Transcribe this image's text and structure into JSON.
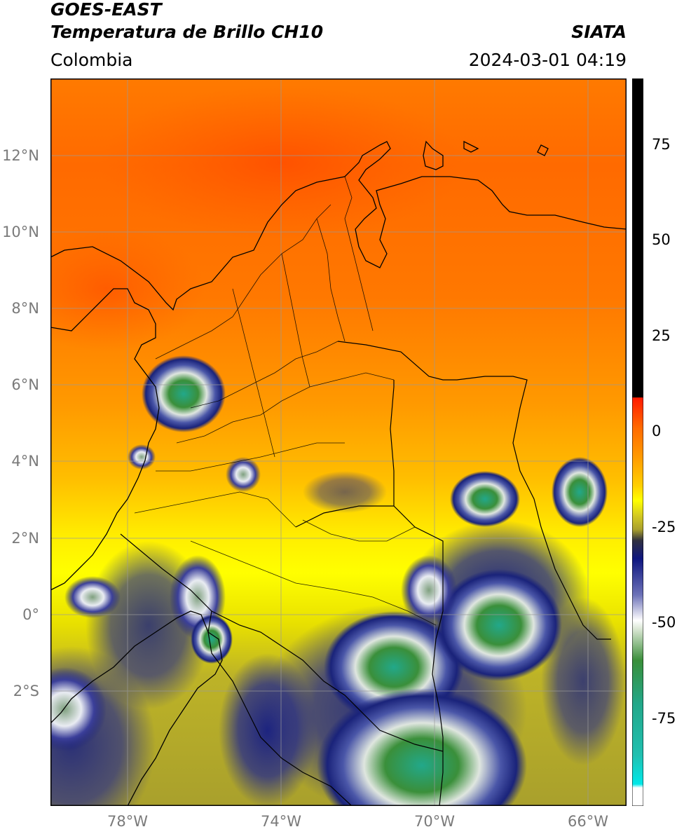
{
  "header": {
    "satellite": "GOES-EAST",
    "product": "Temperatura de Brillo CH10",
    "brand": "SIATA",
    "region": "Colombia",
    "timestamp": "2024-03-01 04:19"
  },
  "map": {
    "lat_labels": [
      "12°N",
      "10°N",
      "8°N",
      "6°N",
      "4°N",
      "2°N",
      "0°",
      "2°S"
    ],
    "lon_labels": [
      "78°W",
      "74°W",
      "70°W",
      "66°W"
    ],
    "extent": {
      "lon_min": -80,
      "lon_max": -65,
      "lat_min": -5,
      "lat_max": 14
    },
    "gridline_color": "#9a9a9a"
  },
  "colorbar": {
    "units_range": [
      -100,
      90
    ],
    "tick_labels": [
      "75",
      "50",
      "25",
      "0",
      "-25",
      "-50",
      "-75"
    ],
    "tick_values": [
      75,
      50,
      25,
      0,
      -25,
      -50,
      -75
    ],
    "colors": {
      "warm": "#ff2a00",
      "orange": "#ff9a00",
      "yellow": "#ffff00",
      "olive": "#b9b02a",
      "navy": "#101a80",
      "white": "#ffffff",
      "green": "#2e8b2e",
      "teal": "#22b08a",
      "cyan": "#00e5e5",
      "black": "#000000"
    }
  }
}
